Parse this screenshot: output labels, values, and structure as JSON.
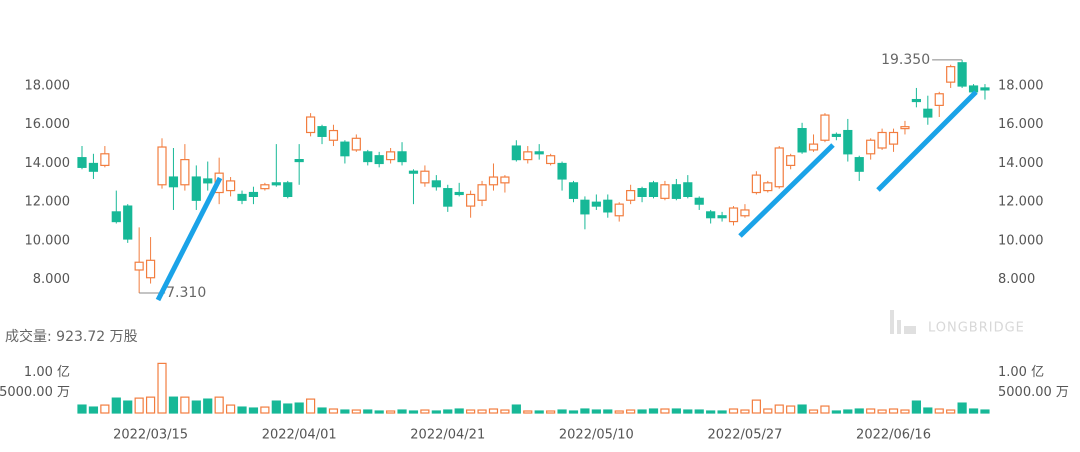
{
  "chart_data": {
    "type": "candlestick",
    "up_color": "#f27d3f",
    "down_color": "#17b897",
    "categories": [
      null,
      null,
      null,
      null,
      null,
      null,
      "2022/03/15",
      null,
      null,
      null,
      null,
      null,
      null,
      null,
      null,
      null,
      null,
      null,
      null,
      "2022/04/01",
      null,
      null,
      null,
      null,
      null,
      null,
      null,
      null,
      null,
      null,
      null,
      null,
      "2022/04/21",
      null,
      null,
      null,
      null,
      null,
      null,
      null,
      null,
      null,
      null,
      null,
      null,
      "2022/05/10",
      null,
      null,
      null,
      null,
      null,
      null,
      null,
      null,
      null,
      null,
      null,
      null,
      "2022/05/27",
      null,
      null,
      null,
      null,
      null,
      null,
      null,
      null,
      null,
      null,
      null,
      null,
      "2022/06/16",
      null,
      null,
      null,
      null,
      null,
      null,
      null,
      null
    ],
    "open": [
      14.3,
      14.0,
      13.9,
      11.5,
      11.8,
      8.5,
      8.1,
      12.9,
      13.3,
      12.9,
      13.3,
      13.2,
      12.5,
      12.6,
      12.4,
      12.5,
      12.7,
      13.0,
      13.0,
      14.2,
      15.6,
      15.9,
      15.2,
      15.1,
      14.7,
      14.6,
      14.4,
      14.2,
      14.6,
      13.6,
      13.0,
      13.1,
      12.7,
      12.5,
      11.8,
      12.1,
      12.9,
      13.0,
      14.9,
      14.2,
      14.6,
      14.0,
      14.0,
      13.0,
      12.1,
      12.0,
      12.1,
      11.3,
      12.1,
      12.7,
      13.0,
      12.2,
      12.9,
      13.0,
      12.2,
      11.5,
      11.3,
      11.0,
      11.3,
      12.5,
      12.6,
      12.8,
      13.9,
      15.8,
      14.7,
      15.2,
      15.5,
      15.7,
      14.3,
      14.5,
      14.8,
      15.0,
      15.8,
      17.3,
      16.8,
      17.0,
      18.2,
      19.2,
      18.0,
      17.9
    ],
    "high": [
      14.9,
      14.5,
      14.9,
      12.6,
      11.9,
      10.7,
      10.2,
      15.3,
      14.8,
      15.0,
      13.9,
      14.1,
      14.3,
      13.3,
      12.6,
      12.8,
      13.0,
      15.0,
      13.1,
      15.0,
      16.6,
      16.0,
      16.0,
      15.2,
      15.5,
      14.7,
      14.6,
      14.8,
      15.1,
      13.7,
      13.9,
      13.4,
      12.9,
      13.0,
      12.6,
      13.1,
      14.0,
      13.4,
      15.2,
      14.9,
      15.0,
      14.5,
      14.1,
      13.1,
      12.3,
      12.4,
      12.4,
      12.0,
      12.9,
      12.8,
      13.1,
      13.1,
      13.2,
      13.4,
      12.3,
      11.6,
      11.5,
      11.8,
      11.9,
      13.6,
      13.1,
      14.9,
      14.5,
      16.1,
      15.5,
      16.6,
      15.6,
      16.3,
      14.4,
      15.3,
      15.8,
      15.8,
      16.2,
      17.9,
      17.5,
      17.7,
      19.1,
      19.35,
      18.1,
      18.1
    ],
    "low": [
      13.7,
      13.2,
      13.8,
      10.9,
      9.9,
      7.31,
      7.8,
      12.7,
      11.6,
      12.6,
      11.6,
      12.6,
      11.9,
      12.3,
      11.9,
      11.9,
      12.6,
      12.8,
      12.2,
      12.9,
      15.4,
      15.0,
      14.9,
      14.0,
      14.6,
      13.9,
      13.8,
      14.0,
      13.9,
      11.9,
      12.8,
      12.6,
      11.5,
      12.3,
      11.2,
      11.8,
      12.6,
      12.5,
      14.1,
      14.0,
      14.2,
      13.9,
      12.6,
      12.0,
      10.6,
      11.6,
      11.2,
      11.0,
      11.9,
      12.0,
      12.2,
      12.1,
      12.1,
      12.2,
      11.6,
      10.9,
      11.0,
      10.8,
      11.2,
      12.4,
      12.5,
      12.7,
      13.7,
      14.5,
      14.6,
      15.1,
      15.2,
      14.1,
      13.1,
      14.2,
      14.7,
      14.6,
      15.5,
      16.9,
      16.0,
      16.4,
      17.9,
      17.9,
      17.6,
      17.3
    ],
    "close": [
      13.8,
      13.6,
      14.5,
      11.0,
      10.1,
      8.9,
      9.0,
      14.85,
      12.8,
      14.2,
      12.1,
      13.0,
      13.5,
      13.1,
      12.1,
      12.3,
      12.9,
      12.9,
      12.3,
      14.1,
      16.4,
      15.4,
      15.7,
      14.4,
      15.3,
      14.1,
      14.0,
      14.6,
      14.1,
      13.5,
      13.6,
      12.8,
      11.8,
      12.4,
      12.4,
      12.9,
      13.3,
      13.3,
      14.2,
      14.6,
      14.5,
      14.4,
      13.2,
      12.2,
      11.4,
      11.8,
      11.5,
      11.9,
      12.6,
      12.3,
      12.3,
      12.9,
      12.2,
      12.3,
      11.9,
      11.2,
      11.2,
      11.7,
      11.6,
      13.4,
      13.0,
      14.8,
      14.4,
      14.6,
      15.0,
      16.5,
      15.4,
      14.5,
      13.6,
      15.2,
      15.6,
      15.6,
      15.9,
      17.2,
      16.4,
      17.6,
      19.0,
      18.0,
      17.7,
      17.8
    ],
    "volume": [
      1950,
      1460,
      1950,
      3660,
      2930,
      3660,
      3900,
      12200,
      3900,
      3900,
      2930,
      3420,
      3900,
      1950,
      1460,
      1220,
      1460,
      2930,
      2200,
      2440,
      3420,
      1220,
      980,
      730,
      730,
      730,
      490,
      490,
      730,
      490,
      730,
      490,
      730,
      980,
      730,
      730,
      980,
      730,
      1950,
      490,
      490,
      490,
      730,
      490,
      980,
      730,
      730,
      490,
      730,
      730,
      980,
      980,
      980,
      730,
      730,
      490,
      490,
      980,
      730,
      3170,
      980,
      1950,
      1710,
      1950,
      730,
      1710,
      490,
      730,
      980,
      980,
      730,
      980,
      730,
      2930,
      1220,
      980,
      730,
      2440,
      980,
      730
    ],
    "ylim": [
      6.95,
      19.86
    ],
    "yticks": [
      {
        "value": 8,
        "label": "8.000"
      },
      {
        "value": 10,
        "label": "10.000"
      },
      {
        "value": 12,
        "label": "12.000"
      },
      {
        "value": 14,
        "label": "14.000"
      },
      {
        "value": 16,
        "label": "16.000"
      },
      {
        "value": 18,
        "label": "18.000"
      }
    ],
    "volume_ylim": [
      0,
      15000
    ],
    "volume_yticks": [
      {
        "value": 5000,
        "label": "5000.00 万"
      },
      {
        "value": 10000,
        "label": "1.00 亿"
      }
    ],
    "high_label": "19.350",
    "low_label": "7.310",
    "volume_title": "成交量: 923.72 万股",
    "watermark": "LONGBRIDGE"
  }
}
